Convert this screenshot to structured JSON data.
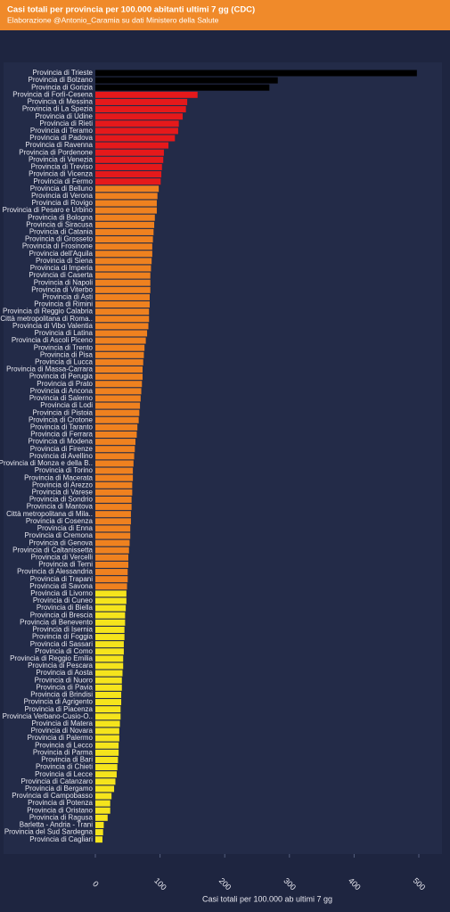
{
  "chart_data": {
    "type": "hbar",
    "title": "Casi totali per provincia per 100.000 abitanti ultimi 7 gg (CDC)",
    "subtitle": "Elaborazione @Antonio_Caramia su dati Ministero della Salute",
    "x_label": "Casi totali per 100.000 ab ultimi 7 gg",
    "categories": [
      "Provincia di Trieste",
      "Provincia di Bolzano",
      "Provincia di Gorizia",
      "Provincia di Forlì-Cesena",
      "Provincia di Messina",
      "Provincia di La Spezia",
      "Provincia di Udine",
      "Provincia di Rieti",
      "Provincia di Teramo",
      "Provincia di Padova",
      "Provincia di Ravenna",
      "Provincia di Pordenone",
      "Provincia di Venezia",
      "Provincia di Treviso",
      "Provincia di Vicenza",
      "Provincia di Fermo",
      "Provincia di Belluno",
      "Provincia di Verona",
      "Provincia di Rovigo",
      "Provincia di Pesaro e Urbino",
      "Provincia di Bologna",
      "Provincia di Siracusa",
      "Provincia di Catania",
      "Provincia di Grosseto",
      "Provincia di Frosinone",
      "Provincia dell'Aquila",
      "Provincia di Siena",
      "Provincia di Imperia",
      "Provincia di Caserta",
      "Provincia di Napoli",
      "Provincia di Viterbo",
      "Provincia di Asti",
      "Provincia di Rimini",
      "Provincia di Reggio Calabria",
      "Città metropolitana di Roma..",
      "Provincia di Vibo Valentia",
      "Provincia di Latina",
      "Provincia di Ascoli Piceno",
      "Provincia di Trento",
      "Provincia di Pisa",
      "Provincia di Lucca",
      "Provincia di Massa-Carrara",
      "Provincia di Perugia",
      "Provincia di Prato",
      "Provincia di Ancona",
      "Provincia di Salerno",
      "Provincia di Lodi",
      "Provincia di Pistoia",
      "Provincia di Crotone",
      "Provincia di Taranto",
      "Provincia di Ferrara",
      "Provincia di Modena",
      "Provincia di Firenze",
      "Provincia di Avellino",
      "Provincia di Monza e della B..",
      "Provincia di Torino",
      "Provincia di Macerata",
      "Provincia di Arezzo",
      "Provincia di Varese",
      "Provincia di Sondrio",
      "Provincia di Mantova",
      "Città metropolitana di Mila..",
      "Provincia di Cosenza",
      "Provincia di Enna",
      "Provincia di Cremona",
      "Provincia di Genova",
      "Provincia di Caltanissetta",
      "Provincia di Vercelli",
      "Provincia di Terni",
      "Provincia di Alessandria",
      "Provincia di Trapani",
      "Provincia di Savona",
      "Provincia di Livorno",
      "Provincia di Cuneo",
      "Provincia di Biella",
      "Provincia di Brescia",
      "Provincia di Benevento",
      "Provincia di Isernia",
      "Provincia di Foggia",
      "Provincia di Sassari",
      "Provincia di Como",
      "Provincia di Reggio Emilia",
      "Provincia di Pescara",
      "Provincia di Aosta",
      "Provincia di Nuoro",
      "Provincia di Pavia",
      "Provincia di Brindisi",
      "Provincia di Agrigento",
      "Provincia di Piacenza",
      "Provincia Verbano-Cusio-O..",
      "Provincia di Matera",
      "Provincia di Novara",
      "Provincia di Palermo",
      "Provincia di Lecco",
      "Provincia di Parma",
      "Provincia di Bari",
      "Provincia di Chieti",
      "Provincia di Lecce",
      "Provincia di Catanzaro",
      "Provincia di Bergamo",
      "Provincia di Campobasso",
      "Provincia di Potenza",
      "Provincia di Oristano",
      "Provincia di Ragusa",
      "Barletta - Andria - Trani",
      "Provincia del Sud Sardegna",
      "Provincia di Cagliari"
    ],
    "values": [
      497,
      282,
      269,
      158,
      142,
      140,
      135,
      129,
      128,
      123,
      113,
      106,
      105,
      103,
      102,
      101,
      98,
      96,
      95,
      95,
      92,
      91,
      90,
      89,
      88,
      88,
      87,
      86,
      85,
      85,
      85,
      84,
      84,
      83,
      83,
      82,
      80,
      78,
      76,
      75,
      74,
      73,
      73,
      72,
      71,
      70,
      69,
      68,
      67,
      65,
      64,
      62,
      61,
      60,
      59,
      58,
      58,
      57,
      57,
      56,
      56,
      55,
      55,
      54,
      54,
      53,
      52,
      51,
      51,
      50,
      50,
      49,
      48,
      48,
      47,
      46,
      46,
      45,
      45,
      44,
      44,
      43,
      43,
      42,
      41,
      41,
      40,
      40,
      39,
      39,
      38,
      37,
      37,
      36,
      36,
      35,
      34,
      33,
      31,
      29,
      25,
      23,
      23,
      19,
      13,
      12,
      11
    ],
    "colors": [
      "#000000",
      "#000000",
      "#000000",
      "#e5191b",
      "#e5191b",
      "#e5191b",
      "#e5191b",
      "#e5191b",
      "#e5191b",
      "#e5191b",
      "#e5191b",
      "#e5191b",
      "#e5191b",
      "#e5191b",
      "#e5191b",
      "#e5191b",
      "#ef811f",
      "#ef811f",
      "#ef811f",
      "#ef811f",
      "#ef811f",
      "#ef811f",
      "#ef811f",
      "#ef811f",
      "#ef811f",
      "#ef811f",
      "#ef811f",
      "#ef811f",
      "#ef811f",
      "#ef811f",
      "#ef811f",
      "#ef811f",
      "#ef811f",
      "#ef811f",
      "#ef811f",
      "#ef811f",
      "#ef811f",
      "#ef811f",
      "#ef811f",
      "#ef811f",
      "#ef811f",
      "#ef811f",
      "#ef811f",
      "#ef811f",
      "#ef811f",
      "#ef811f",
      "#ef811f",
      "#ef811f",
      "#ef811f",
      "#ef811f",
      "#ef811f",
      "#ef811f",
      "#ef811f",
      "#ef811f",
      "#ef811f",
      "#ef811f",
      "#ef811f",
      "#ef811f",
      "#ef811f",
      "#ef811f",
      "#ef811f",
      "#ef811f",
      "#ef811f",
      "#ef811f",
      "#ef811f",
      "#ef811f",
      "#ef811f",
      "#ef811f",
      "#ef811f",
      "#ef811f",
      "#ef811f",
      "#ef811f",
      "#f5e41c",
      "#f5e41c",
      "#f5e41c",
      "#f5e41c",
      "#f5e41c",
      "#f5e41c",
      "#f5e41c",
      "#f5e41c",
      "#f5e41c",
      "#f5e41c",
      "#f5e41c",
      "#f5e41c",
      "#f5e41c",
      "#f5e41c",
      "#f5e41c",
      "#f5e41c",
      "#f5e41c",
      "#f5e41c",
      "#f5e41c",
      "#f5e41c",
      "#f5e41c",
      "#f5e41c",
      "#f5e41c",
      "#f5e41c",
      "#f5e41c",
      "#f5e41c",
      "#f5e41c",
      "#f5e41c",
      "#f5e41c",
      "#f5e41c",
      "#f5e41c",
      "#f5e41c",
      "#f5e41c",
      "#f5e41c",
      "#f5e41c"
    ],
    "xlim": [
      0,
      500
    ],
    "xticks": [
      0,
      100,
      200,
      300,
      400,
      500
    ]
  }
}
